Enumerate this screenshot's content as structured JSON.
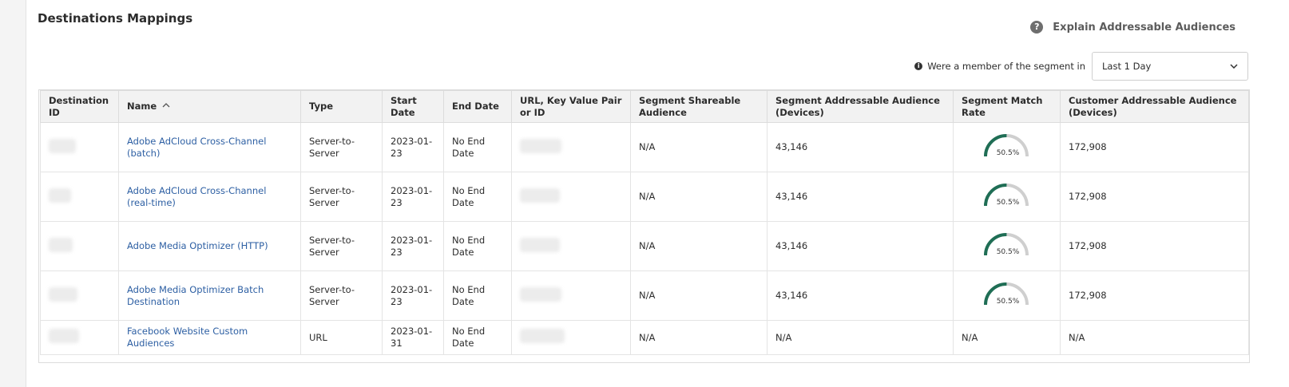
{
  "header": {
    "title": "Destinations Mappings",
    "help_link": "Explain Addressable Audiences"
  },
  "filter": {
    "label": "Were a member of the segment in",
    "selected": "Last 1 Day"
  },
  "table": {
    "columns": [
      "Destination ID",
      "Name",
      "Type",
      "Start Date",
      "End Date",
      "URL, Key Value Pair or ID",
      "Segment Shareable Audience",
      "Segment Addressable Audience (Devices)",
      "Segment Match Rate",
      "Customer Addressable Audience (Devices)"
    ],
    "rows": [
      {
        "name": "Adobe AdCloud Cross-Channel (batch)",
        "type": "Server-to-Server",
        "start_date": "2023-01-23",
        "end_date": "No End Date",
        "shareable": "N/A",
        "addressable": "43,146",
        "match_rate": {
          "value": 50.5,
          "label": "50.5%"
        },
        "customer": "172,908"
      },
      {
        "name": "Adobe AdCloud Cross-Channel (real-time)",
        "type": "Server-to-Server",
        "start_date": "2023-01-23",
        "end_date": "No End Date",
        "shareable": "N/A",
        "addressable": "43,146",
        "match_rate": {
          "value": 50.5,
          "label": "50.5%"
        },
        "customer": "172,908"
      },
      {
        "name": "Adobe Media Optimizer (HTTP)",
        "type": "Server-to-Server",
        "start_date": "2023-01-23",
        "end_date": "No End Date",
        "shareable": "N/A",
        "addressable": "43,146",
        "match_rate": {
          "value": 50.5,
          "label": "50.5%"
        },
        "customer": "172,908"
      },
      {
        "name": "Adobe Media Optimizer Batch Destination",
        "type": "Server-to-Server",
        "start_date": "2023-01-23",
        "end_date": "No End Date",
        "shareable": "N/A",
        "addressable": "43,146",
        "match_rate": {
          "value": 50.5,
          "label": "50.5%"
        },
        "customer": "172,908"
      },
      {
        "name": "Facebook Website Custom Audiences",
        "type": "URL",
        "start_date": "2023-01-31",
        "end_date": "No End Date",
        "shareable": "N/A",
        "addressable": "N/A",
        "match_rate": "N/A",
        "customer": "N/A"
      }
    ]
  }
}
